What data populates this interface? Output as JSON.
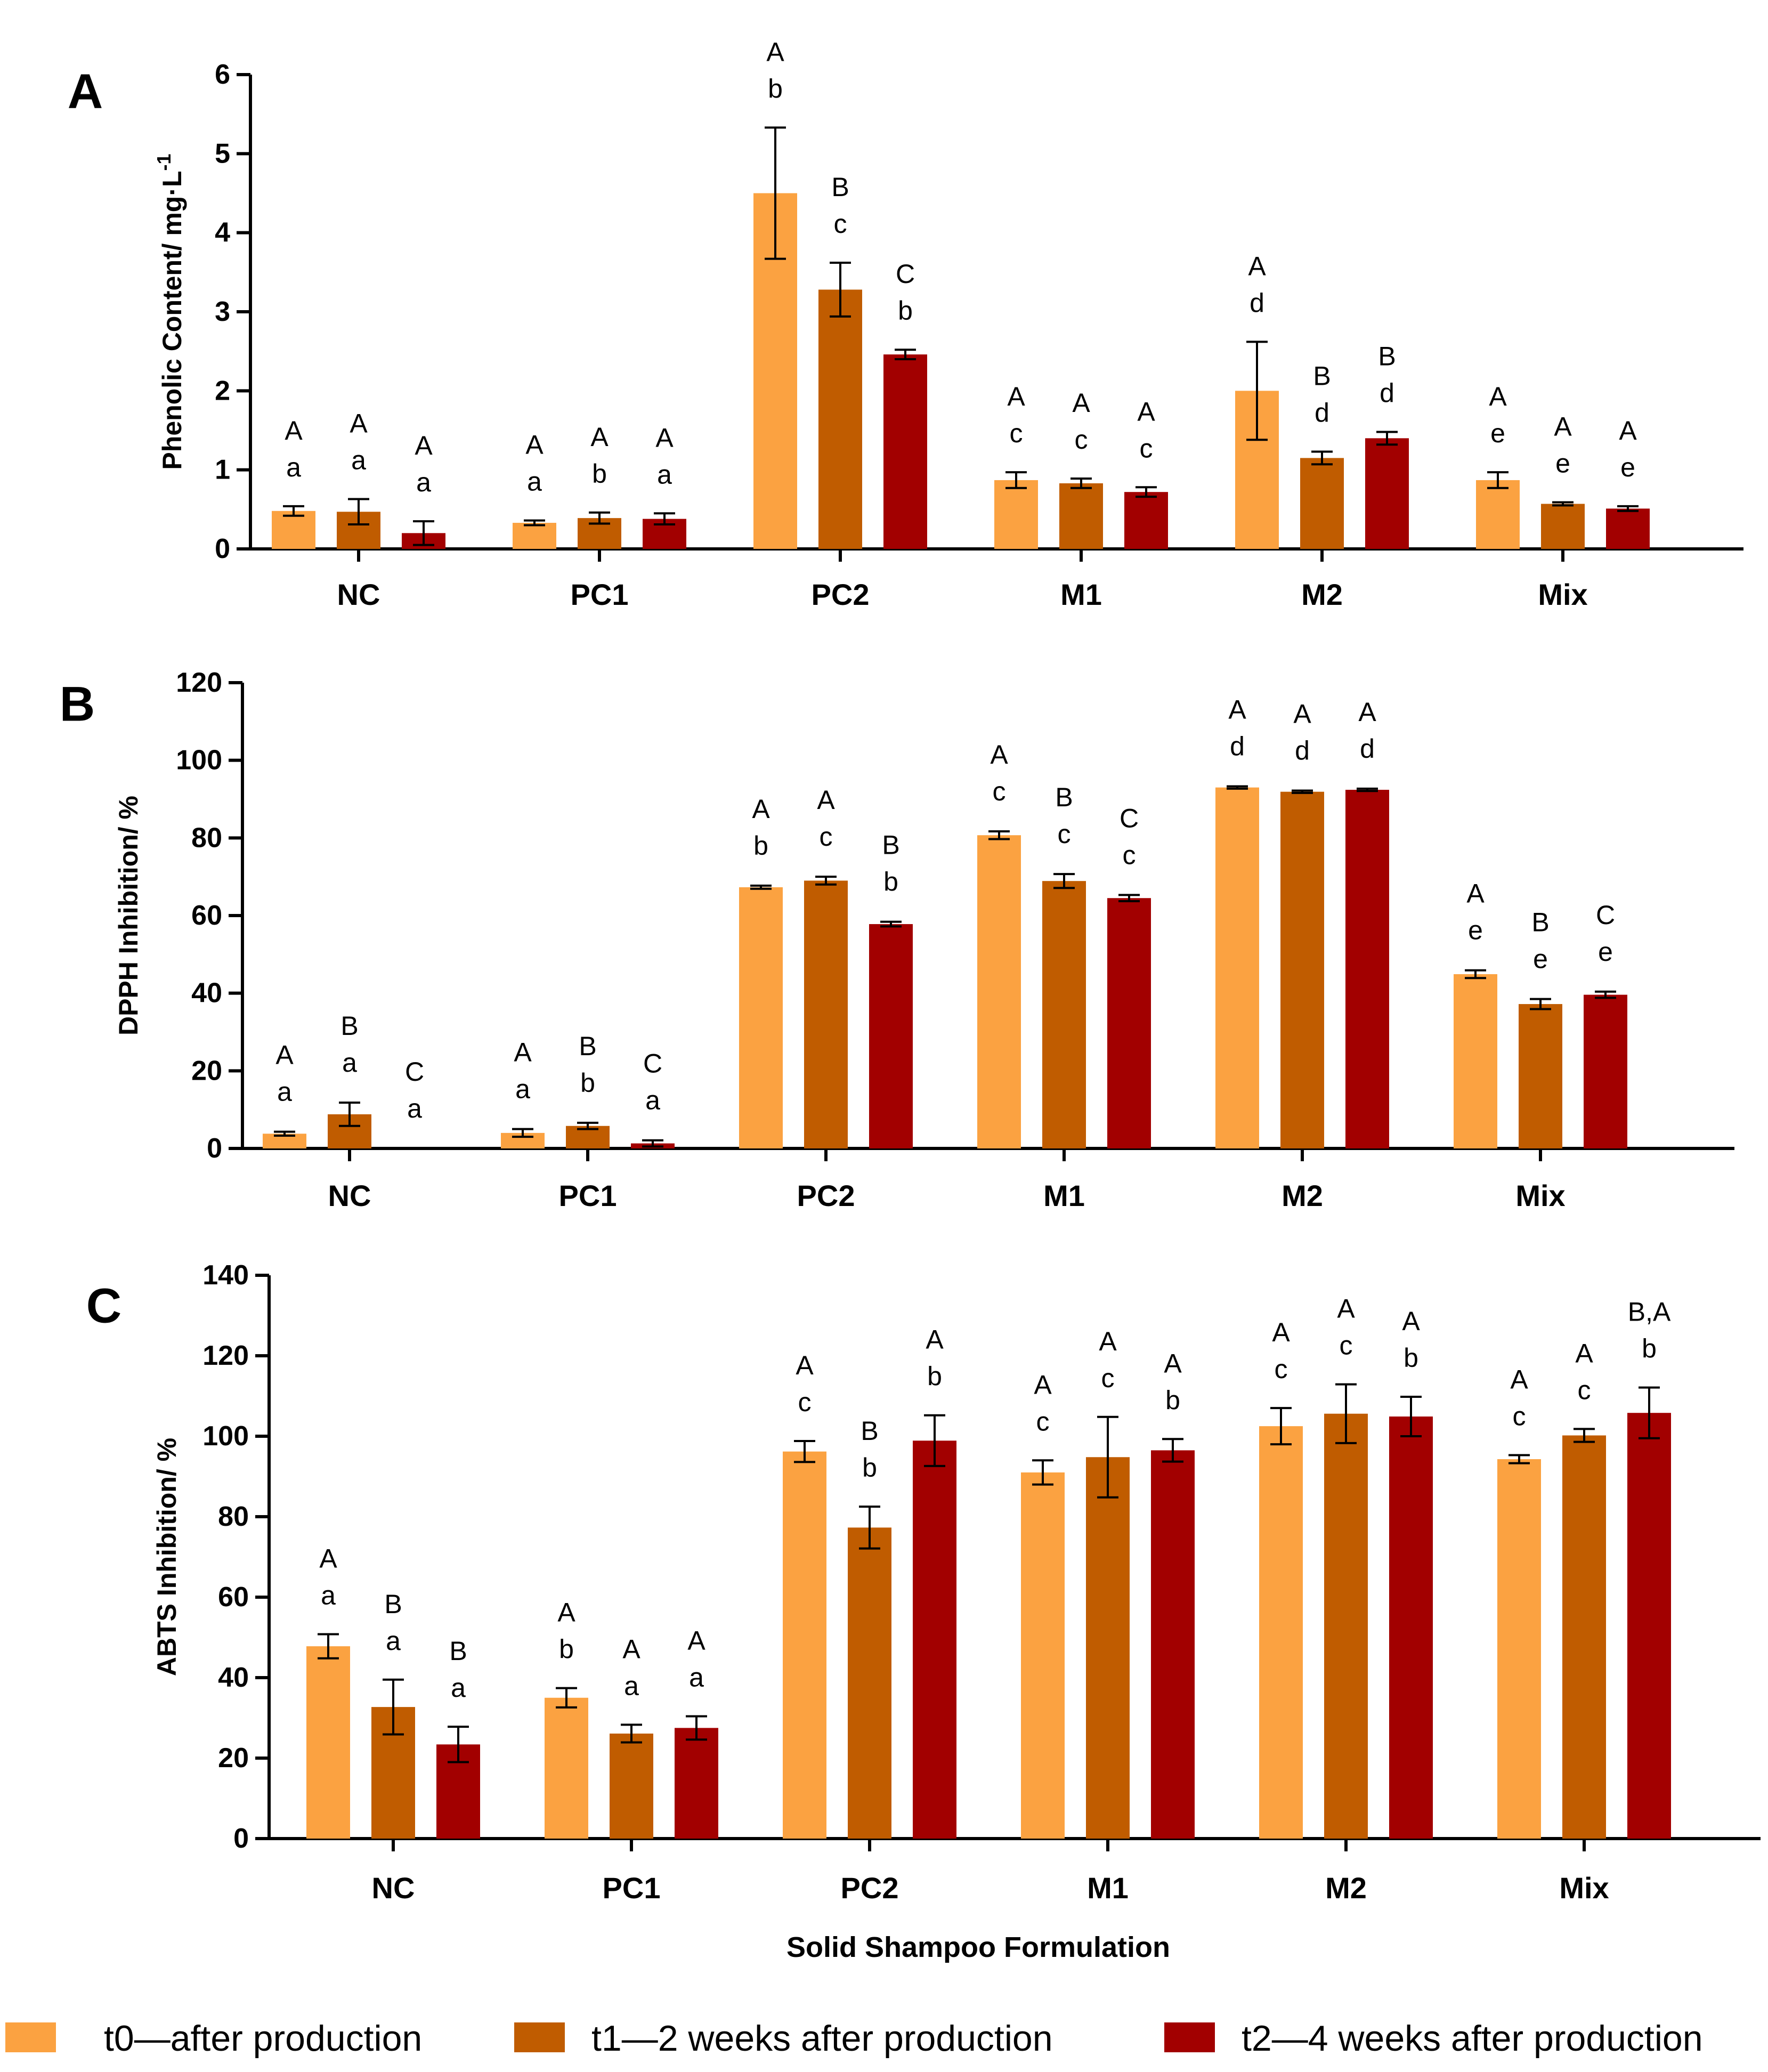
{
  "legend": [
    {
      "name": "t0—after production",
      "color": "#FBA241"
    },
    {
      "name": "t1—2 weeks after production",
      "color": "#C05C00"
    },
    {
      "name": "t2—4 weeks after production",
      "color": "#A20000"
    }
  ],
  "xlabel": "Solid Shampoo Formulation",
  "chart_data": [
    {
      "panel": "A",
      "type": "bar",
      "ylabel": "Phenolic Content/ mg·L",
      "ylabel_sup": "-1",
      "ylim": [
        0,
        6
      ],
      "yticks": [
        "0",
        "1",
        "2",
        "3",
        "4",
        "5",
        "6"
      ],
      "categories": [
        "NC",
        "PC1",
        "PC2",
        "M1",
        "M2",
        "Mix"
      ],
      "series": [
        {
          "name": "t0—after production",
          "values": [
            0.48,
            0.33,
            4.5,
            0.87,
            2.0,
            0.87
          ],
          "errors": [
            0.06,
            0.03,
            0.83,
            0.1,
            0.62,
            0.1
          ]
        },
        {
          "name": "t1—2 weeks after production",
          "values": [
            0.47,
            0.39,
            3.28,
            0.83,
            1.15,
            0.57
          ],
          "errors": [
            0.16,
            0.07,
            0.34,
            0.06,
            0.08,
            0.02
          ]
        },
        {
          "name": "t2—4 weeks after production",
          "values": [
            0.2,
            0.38,
            2.46,
            0.72,
            1.4,
            0.51
          ],
          "errors": [
            0.15,
            0.07,
            0.06,
            0.06,
            0.08,
            0.03
          ]
        }
      ],
      "sig_upper": [
        [
          "A",
          "A",
          "A"
        ],
        [
          "A",
          "A",
          "A"
        ],
        [
          "A",
          "B",
          "C"
        ],
        [
          "A",
          "A",
          "A"
        ],
        [
          "A",
          "B",
          "B"
        ],
        [
          "A",
          "A",
          "A"
        ]
      ],
      "sig_lower": [
        [
          "a",
          "a",
          "a"
        ],
        [
          "a",
          "b",
          "a"
        ],
        [
          "b",
          "c",
          "b"
        ],
        [
          "c",
          "c",
          "c"
        ],
        [
          "d",
          "d",
          "d"
        ],
        [
          "e",
          "e",
          "e"
        ]
      ]
    },
    {
      "panel": "B",
      "type": "bar",
      "ylabel": "DPPH Inhibition/ %",
      "ylim": [
        0,
        120
      ],
      "yticks": [
        "0",
        "20",
        "40",
        "60",
        "80",
        "100",
        "120"
      ],
      "categories": [
        "NC",
        "PC1",
        "PC2",
        "M1",
        "M2",
        "Mix"
      ],
      "series": [
        {
          "name": "t0—after production",
          "values": [
            3.8,
            4.0,
            67.3,
            80.7,
            93.0,
            44.9
          ],
          "errors": [
            0.5,
            1.0,
            0.4,
            1.0,
            0.3,
            1.0
          ]
        },
        {
          "name": "t1—2 weeks after production",
          "values": [
            8.8,
            5.8,
            69.0,
            68.9,
            91.9,
            37.2
          ],
          "errors": [
            3.0,
            0.8,
            1.0,
            1.8,
            0.3,
            1.3
          ]
        },
        {
          "name": "t2—4 weeks after production",
          "values": [
            0.0,
            1.3,
            57.8,
            64.5,
            92.4,
            39.6
          ],
          "errors": [
            0.0,
            0.8,
            0.6,
            0.8,
            0.3,
            0.8
          ]
        }
      ],
      "sig_upper": [
        [
          "A",
          "B",
          "C"
        ],
        [
          "A",
          "B",
          "C"
        ],
        [
          "A",
          "A",
          "B"
        ],
        [
          "A",
          "B",
          "C"
        ],
        [
          "A",
          "A",
          "A"
        ],
        [
          "A",
          "B",
          "C"
        ]
      ],
      "sig_lower": [
        [
          "a",
          "a",
          "a"
        ],
        [
          "a",
          "b",
          "a"
        ],
        [
          "b",
          "c",
          "b"
        ],
        [
          "c",
          "c",
          "c"
        ],
        [
          "d",
          "d",
          "d"
        ],
        [
          "e",
          "e",
          "e"
        ]
      ]
    },
    {
      "panel": "C",
      "type": "bar",
      "ylabel": "ABTS Inhibition/ %",
      "ylim": [
        0,
        140
      ],
      "yticks": [
        "0",
        "20",
        "40",
        "60",
        "80",
        "100",
        "120",
        "140"
      ],
      "categories": [
        "NC",
        "PC1",
        "PC2",
        "M1",
        "M2",
        "Mix"
      ],
      "series": [
        {
          "name": "t0—after production",
          "values": [
            47.8,
            35.0,
            96.2,
            91.0,
            102.5,
            94.3
          ],
          "errors": [
            3.0,
            2.4,
            2.6,
            3.0,
            4.5,
            1.0
          ]
        },
        {
          "name": "t1—2 weeks after production",
          "values": [
            32.7,
            26.1,
            77.3,
            94.8,
            105.6,
            100.2
          ],
          "errors": [
            6.8,
            2.2,
            5.2,
            10.0,
            7.3,
            1.6
          ]
        },
        {
          "name": "t2—4 weeks after production",
          "values": [
            23.4,
            27.5,
            98.9,
            96.5,
            104.9,
            105.8
          ],
          "errors": [
            4.4,
            2.9,
            6.3,
            2.8,
            4.9,
            6.3
          ]
        }
      ],
      "sig_upper": [
        [
          "A",
          "B",
          "B"
        ],
        [
          "A",
          "A",
          "A"
        ],
        [
          "A",
          "B",
          "A"
        ],
        [
          "A",
          "A",
          "A"
        ],
        [
          "A",
          "A",
          "A"
        ],
        [
          "A",
          "A",
          "B,A"
        ]
      ],
      "sig_lower": [
        [
          "a",
          "a",
          "a"
        ],
        [
          "b",
          "a",
          "a"
        ],
        [
          "c",
          "b",
          "b"
        ],
        [
          "c",
          "c",
          "b"
        ],
        [
          "c",
          "c",
          "b"
        ],
        [
          "c",
          "c",
          "b"
        ]
      ]
    }
  ]
}
